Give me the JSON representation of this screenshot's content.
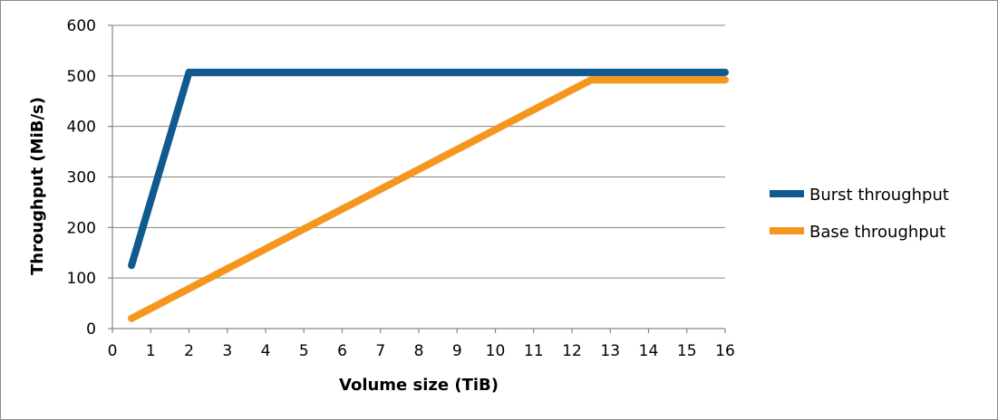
{
  "chart_data": {
    "type": "line",
    "title": "",
    "xlabel": "Volume size (TiB)",
    "ylabel": "Throughput (MiB/s)",
    "xlim": [
      0,
      16
    ],
    "ylim": [
      0,
      600
    ],
    "xticks": [
      0,
      1,
      2,
      3,
      4,
      5,
      6,
      7,
      8,
      9,
      10,
      11,
      12,
      13,
      14,
      15,
      16
    ],
    "yticks": [
      0,
      100,
      200,
      300,
      400,
      500,
      600
    ],
    "grid": "horizontal",
    "legend_position": "right",
    "series": [
      {
        "name": "Burst throughput",
        "color": "#0f5a8f",
        "points": [
          [
            0.5,
            125
          ],
          [
            2,
            507
          ],
          [
            16,
            507
          ]
        ]
      },
      {
        "name": "Base throughput",
        "color": "#f5961e",
        "points": [
          [
            0.5,
            20
          ],
          [
            12.5,
            492
          ],
          [
            16,
            492
          ]
        ]
      }
    ]
  }
}
